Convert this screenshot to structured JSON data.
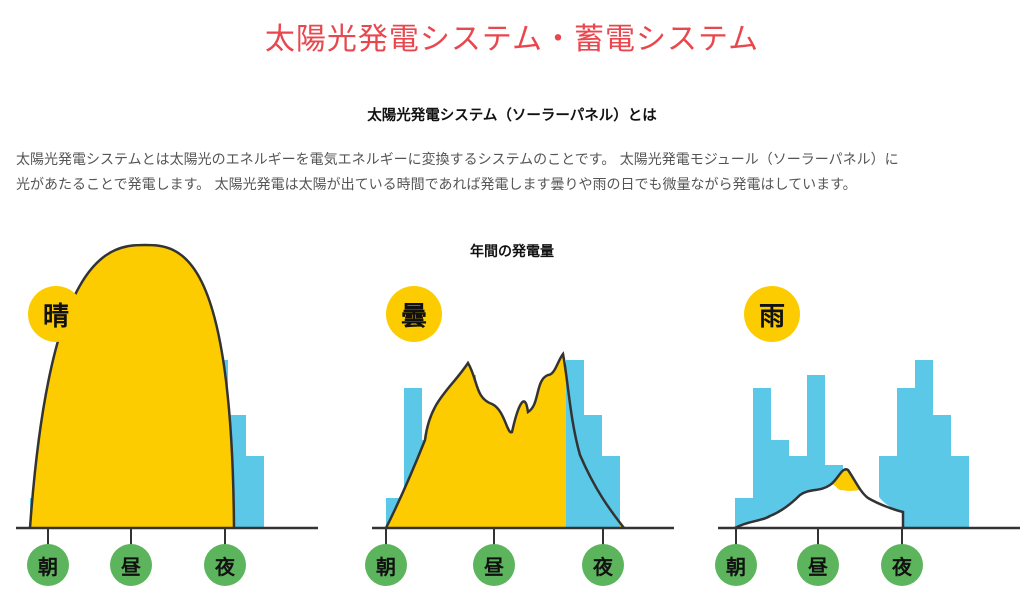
{
  "page": {
    "title": "太陽光発電システム・蓄電システム",
    "section_heading": "太陽光発電システム（ソーラーパネル）とは",
    "description_line1": "太陽光発電システムとは太陽光のエネルギーを電気エネルギーに変換するシステムのことです。 太陽光発電モジュール（ソーラーパネル）に",
    "description_line2": "光があたることで発電します。 太陽光発電は太陽が出ている時間であれば発電します曇りや雨の日でも微量ながら発電はしています。",
    "chart_heading": "年間の発電量"
  },
  "colors": {
    "sun": "#fdcc00",
    "demand": "#5bc8e8",
    "time": "#5cb45c",
    "title": "#e8474e"
  },
  "charts": [
    {
      "weather": "晴",
      "time_labels": [
        "朝",
        "昼",
        "夜"
      ]
    },
    {
      "weather": "曇",
      "time_labels": [
        "朝",
        "昼",
        "夜"
      ]
    },
    {
      "weather": "雨",
      "time_labels": [
        "朝",
        "昼",
        "夜"
      ]
    }
  ]
}
